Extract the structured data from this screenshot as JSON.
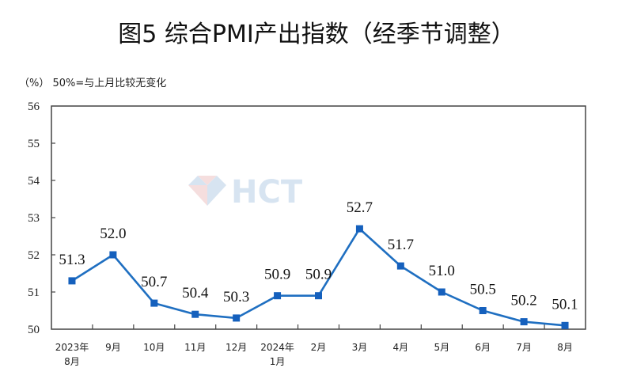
{
  "header": {
    "title": "图5  综合PMI产出指数（经季节调整）",
    "unit_note": "（%）  50%=与上月比较无变化"
  },
  "watermark": {
    "text": "HCT",
    "icon": "diamond-logo-icon"
  },
  "colors": {
    "line": "#1f6fc1",
    "marker": "#1560bd",
    "axis": "#444444",
    "watermark_blue": "#8fb3d9",
    "watermark_red": "#e3a3a3"
  },
  "chart_data": {
    "type": "line",
    "title": "图5  综合PMI产出指数（经季节调整）",
    "ylabel": "（%）",
    "annotation": "50%=与上月比较无变化",
    "xlabel": "",
    "categories": [
      "2023年\n8月",
      "9月",
      "10月",
      "11月",
      "12月",
      "2024年\n1月",
      "2月",
      "3月",
      "4月",
      "5月",
      "6月",
      "7月",
      "8月"
    ],
    "category_lines": [
      [
        "2023年",
        "8月"
      ],
      [
        "9月"
      ],
      [
        "10月"
      ],
      [
        "11月"
      ],
      [
        "12月"
      ],
      [
        "2024年",
        "1月"
      ],
      [
        "2月"
      ],
      [
        "3月"
      ],
      [
        "4月"
      ],
      [
        "5月"
      ],
      [
        "6月"
      ],
      [
        "7月"
      ],
      [
        "8月"
      ]
    ],
    "series": [
      {
        "name": "综合PMI产出指数",
        "values": [
          51.3,
          52.0,
          50.7,
          50.4,
          50.3,
          50.9,
          50.9,
          52.7,
          51.7,
          51.0,
          50.5,
          50.2,
          50.1
        ],
        "labels": [
          "51.3",
          "52.0",
          "50.7",
          "50.4",
          "50.3",
          "50.9",
          "50.9",
          "52.7",
          "51.7",
          "51.0",
          "50.5",
          "50.2",
          "50.1"
        ],
        "marker": "square"
      }
    ],
    "ylim": [
      50,
      56
    ],
    "yticks": [
      50,
      51,
      52,
      53,
      54,
      55,
      56
    ],
    "grid": false,
    "legend": "none"
  }
}
